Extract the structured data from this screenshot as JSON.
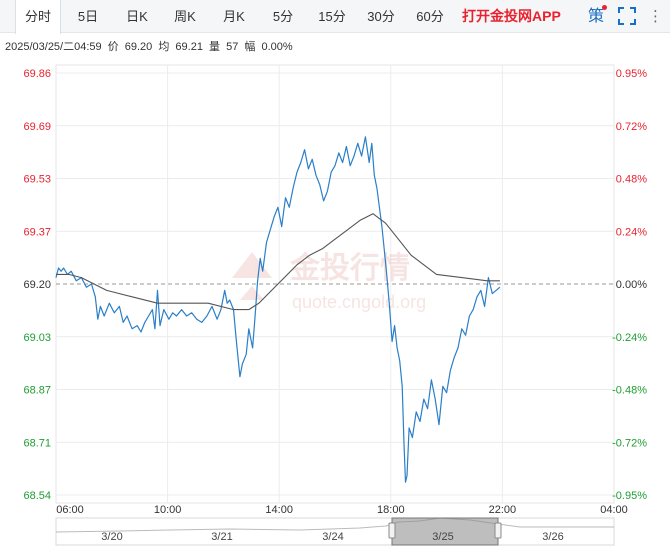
{
  "tabs": [
    {
      "label": "分时",
      "active": true
    },
    {
      "label": "5日"
    },
    {
      "label": "日K"
    },
    {
      "label": "周K"
    },
    {
      "label": "月K"
    },
    {
      "label": "5分"
    },
    {
      "label": "15分"
    },
    {
      "label": "30分"
    },
    {
      "label": "60分"
    }
  ],
  "app_link": "打开金投网APP",
  "ce_icon_label": "策",
  "info": {
    "datetime": "2025/03/25/二04:59",
    "price_label": "价",
    "price": "69.20",
    "avg_label": "均",
    "avg": "69.21",
    "volume_label": "量",
    "volume": "57",
    "change_label": "幅",
    "change": "0.00%"
  },
  "watermark": {
    "brand": "金投行情",
    "url": "quote.cngold.org"
  },
  "colors": {
    "price_line": "#2a7fc8",
    "avg_line": "#555555",
    "up": "#e8232f",
    "down": "#1e9e33",
    "neutral": "#333333",
    "grid": "#ececec",
    "baseline": "#999999"
  },
  "chart_data": {
    "type": "line",
    "y_ticks": [
      "69.86",
      "69.69",
      "69.53",
      "69.37",
      "69.20",
      "69.03",
      "68.87",
      "68.71",
      "68.54"
    ],
    "pct_ticks": [
      "0.95%",
      "0.72%",
      "0.48%",
      "0.24%",
      "0.00%",
      "-0.24%",
      "-0.48%",
      "-0.72%",
      "-0.95%"
    ],
    "ylim": [
      68.54,
      69.86
    ],
    "base_price": 69.2,
    "x_ticks": [
      "06:00",
      "10:00",
      "14:00",
      "18:00",
      "22:00",
      "04:00"
    ],
    "grid": true,
    "series": [
      {
        "key": "price",
        "points": [
          [
            0,
            69.22
          ],
          [
            0.1,
            69.25
          ],
          [
            0.2,
            69.24
          ],
          [
            0.3,
            69.25
          ],
          [
            0.45,
            69.23
          ],
          [
            0.6,
            69.24
          ],
          [
            0.8,
            69.21
          ],
          [
            1.0,
            69.22
          ],
          [
            1.2,
            69.19
          ],
          [
            1.4,
            69.2
          ],
          [
            1.55,
            69.16
          ],
          [
            1.65,
            69.09
          ],
          [
            1.75,
            69.13
          ],
          [
            1.9,
            69.1
          ],
          [
            2.1,
            69.14
          ],
          [
            2.3,
            69.11
          ],
          [
            2.5,
            69.13
          ],
          [
            2.65,
            69.08
          ],
          [
            2.8,
            69.1
          ],
          [
            3.0,
            69.06
          ],
          [
            3.2,
            69.07
          ],
          [
            3.35,
            69.05
          ],
          [
            3.5,
            69.08
          ],
          [
            3.65,
            69.1
          ],
          [
            3.8,
            69.12
          ],
          [
            3.9,
            69.06
          ],
          [
            4.0,
            69.18
          ],
          [
            4.1,
            69.07
          ],
          [
            4.25,
            69.12
          ],
          [
            4.45,
            69.09
          ],
          [
            4.6,
            69.11
          ],
          [
            4.75,
            69.1
          ],
          [
            4.95,
            69.12
          ],
          [
            5.15,
            69.1
          ],
          [
            5.35,
            69.11
          ],
          [
            5.55,
            69.09
          ],
          [
            5.75,
            69.08
          ],
          [
            5.95,
            69.1
          ],
          [
            6.15,
            69.13
          ],
          [
            6.35,
            69.09
          ],
          [
            6.5,
            69.12
          ],
          [
            6.65,
            69.18
          ],
          [
            6.75,
            69.14
          ],
          [
            6.85,
            69.15
          ],
          [
            7.0,
            69.12
          ],
          [
            7.1,
            69.03
          ],
          [
            7.25,
            68.91
          ],
          [
            7.35,
            68.95
          ],
          [
            7.5,
            68.98
          ],
          [
            7.6,
            69.06
          ],
          [
            7.75,
            69.0
          ],
          [
            7.85,
            69.1
          ],
          [
            7.95,
            69.21
          ],
          [
            8.05,
            69.28
          ],
          [
            8.15,
            69.24
          ],
          [
            8.3,
            69.33
          ],
          [
            8.45,
            69.37
          ],
          [
            8.6,
            69.41
          ],
          [
            8.75,
            69.44
          ],
          [
            8.9,
            69.38
          ],
          [
            9.05,
            69.47
          ],
          [
            9.2,
            69.44
          ],
          [
            9.35,
            69.5
          ],
          [
            9.5,
            69.55
          ],
          [
            9.65,
            69.58
          ],
          [
            9.8,
            69.62
          ],
          [
            9.95,
            69.56
          ],
          [
            10.1,
            69.59
          ],
          [
            10.25,
            69.54
          ],
          [
            10.4,
            69.51
          ],
          [
            10.55,
            69.46
          ],
          [
            10.7,
            69.49
          ],
          [
            10.85,
            69.55
          ],
          [
            11.0,
            69.57
          ],
          [
            11.15,
            69.61
          ],
          [
            11.3,
            69.58
          ],
          [
            11.45,
            69.63
          ],
          [
            11.6,
            69.57
          ],
          [
            11.75,
            69.6
          ],
          [
            11.9,
            69.64
          ],
          [
            12.05,
            69.6
          ],
          [
            12.2,
            69.66
          ],
          [
            12.35,
            69.58
          ],
          [
            12.45,
            69.64
          ],
          [
            12.55,
            69.54
          ],
          [
            12.65,
            69.5
          ],
          [
            12.75,
            69.44
          ],
          [
            12.85,
            69.38
          ],
          [
            12.95,
            69.3
          ],
          [
            13.05,
            69.22
          ],
          [
            13.15,
            69.13
          ],
          [
            13.25,
            69.02
          ],
          [
            13.35,
            69.07
          ],
          [
            13.45,
            69.0
          ],
          [
            13.55,
            68.96
          ],
          [
            13.65,
            68.88
          ],
          [
            13.72,
            68.7
          ],
          [
            13.78,
            68.58
          ],
          [
            13.84,
            68.6
          ],
          [
            13.92,
            68.75
          ],
          [
            14.05,
            68.72
          ],
          [
            14.2,
            68.8
          ],
          [
            14.35,
            68.77
          ],
          [
            14.5,
            68.84
          ],
          [
            14.65,
            68.81
          ],
          [
            14.8,
            68.9
          ],
          [
            14.95,
            68.84
          ],
          [
            15.1,
            68.76
          ],
          [
            15.25,
            68.88
          ],
          [
            15.4,
            68.86
          ],
          [
            15.55,
            68.93
          ],
          [
            15.7,
            68.97
          ],
          [
            15.85,
            69.0
          ],
          [
            16.0,
            69.06
          ],
          [
            16.15,
            69.04
          ],
          [
            16.3,
            69.1
          ],
          [
            16.45,
            69.12
          ],
          [
            16.6,
            69.16
          ],
          [
            16.75,
            69.18
          ],
          [
            16.9,
            69.13
          ],
          [
            17.05,
            69.22
          ],
          [
            17.2,
            69.17
          ],
          [
            17.35,
            69.18
          ],
          [
            17.5,
            69.19
          ]
        ]
      },
      {
        "key": "average",
        "points": [
          [
            0,
            69.23
          ],
          [
            0.5,
            69.23
          ],
          [
            1.0,
            69.22
          ],
          [
            1.5,
            69.2
          ],
          [
            2.0,
            69.18
          ],
          [
            3.0,
            69.16
          ],
          [
            4.0,
            69.14
          ],
          [
            5.0,
            69.14
          ],
          [
            6.0,
            69.14
          ],
          [
            7.0,
            69.12
          ],
          [
            7.6,
            69.12
          ],
          [
            8.0,
            69.14
          ],
          [
            8.5,
            69.18
          ],
          [
            9.0,
            69.22
          ],
          [
            9.5,
            69.26
          ],
          [
            10.0,
            69.29
          ],
          [
            10.5,
            69.31
          ],
          [
            11.0,
            69.34
          ],
          [
            11.5,
            69.37
          ],
          [
            12.0,
            69.4
          ],
          [
            12.5,
            69.42
          ],
          [
            13.0,
            69.39
          ],
          [
            13.5,
            69.34
          ],
          [
            14.0,
            69.29
          ],
          [
            14.5,
            69.26
          ],
          [
            15.0,
            69.23
          ],
          [
            16.0,
            69.22
          ],
          [
            17.0,
            69.21
          ],
          [
            17.5,
            69.21
          ]
        ]
      }
    ]
  },
  "navigator": {
    "dates": [
      "3/20",
      "3/21",
      "3/24",
      "3/25",
      "3/26"
    ],
    "selected": "3/25"
  }
}
